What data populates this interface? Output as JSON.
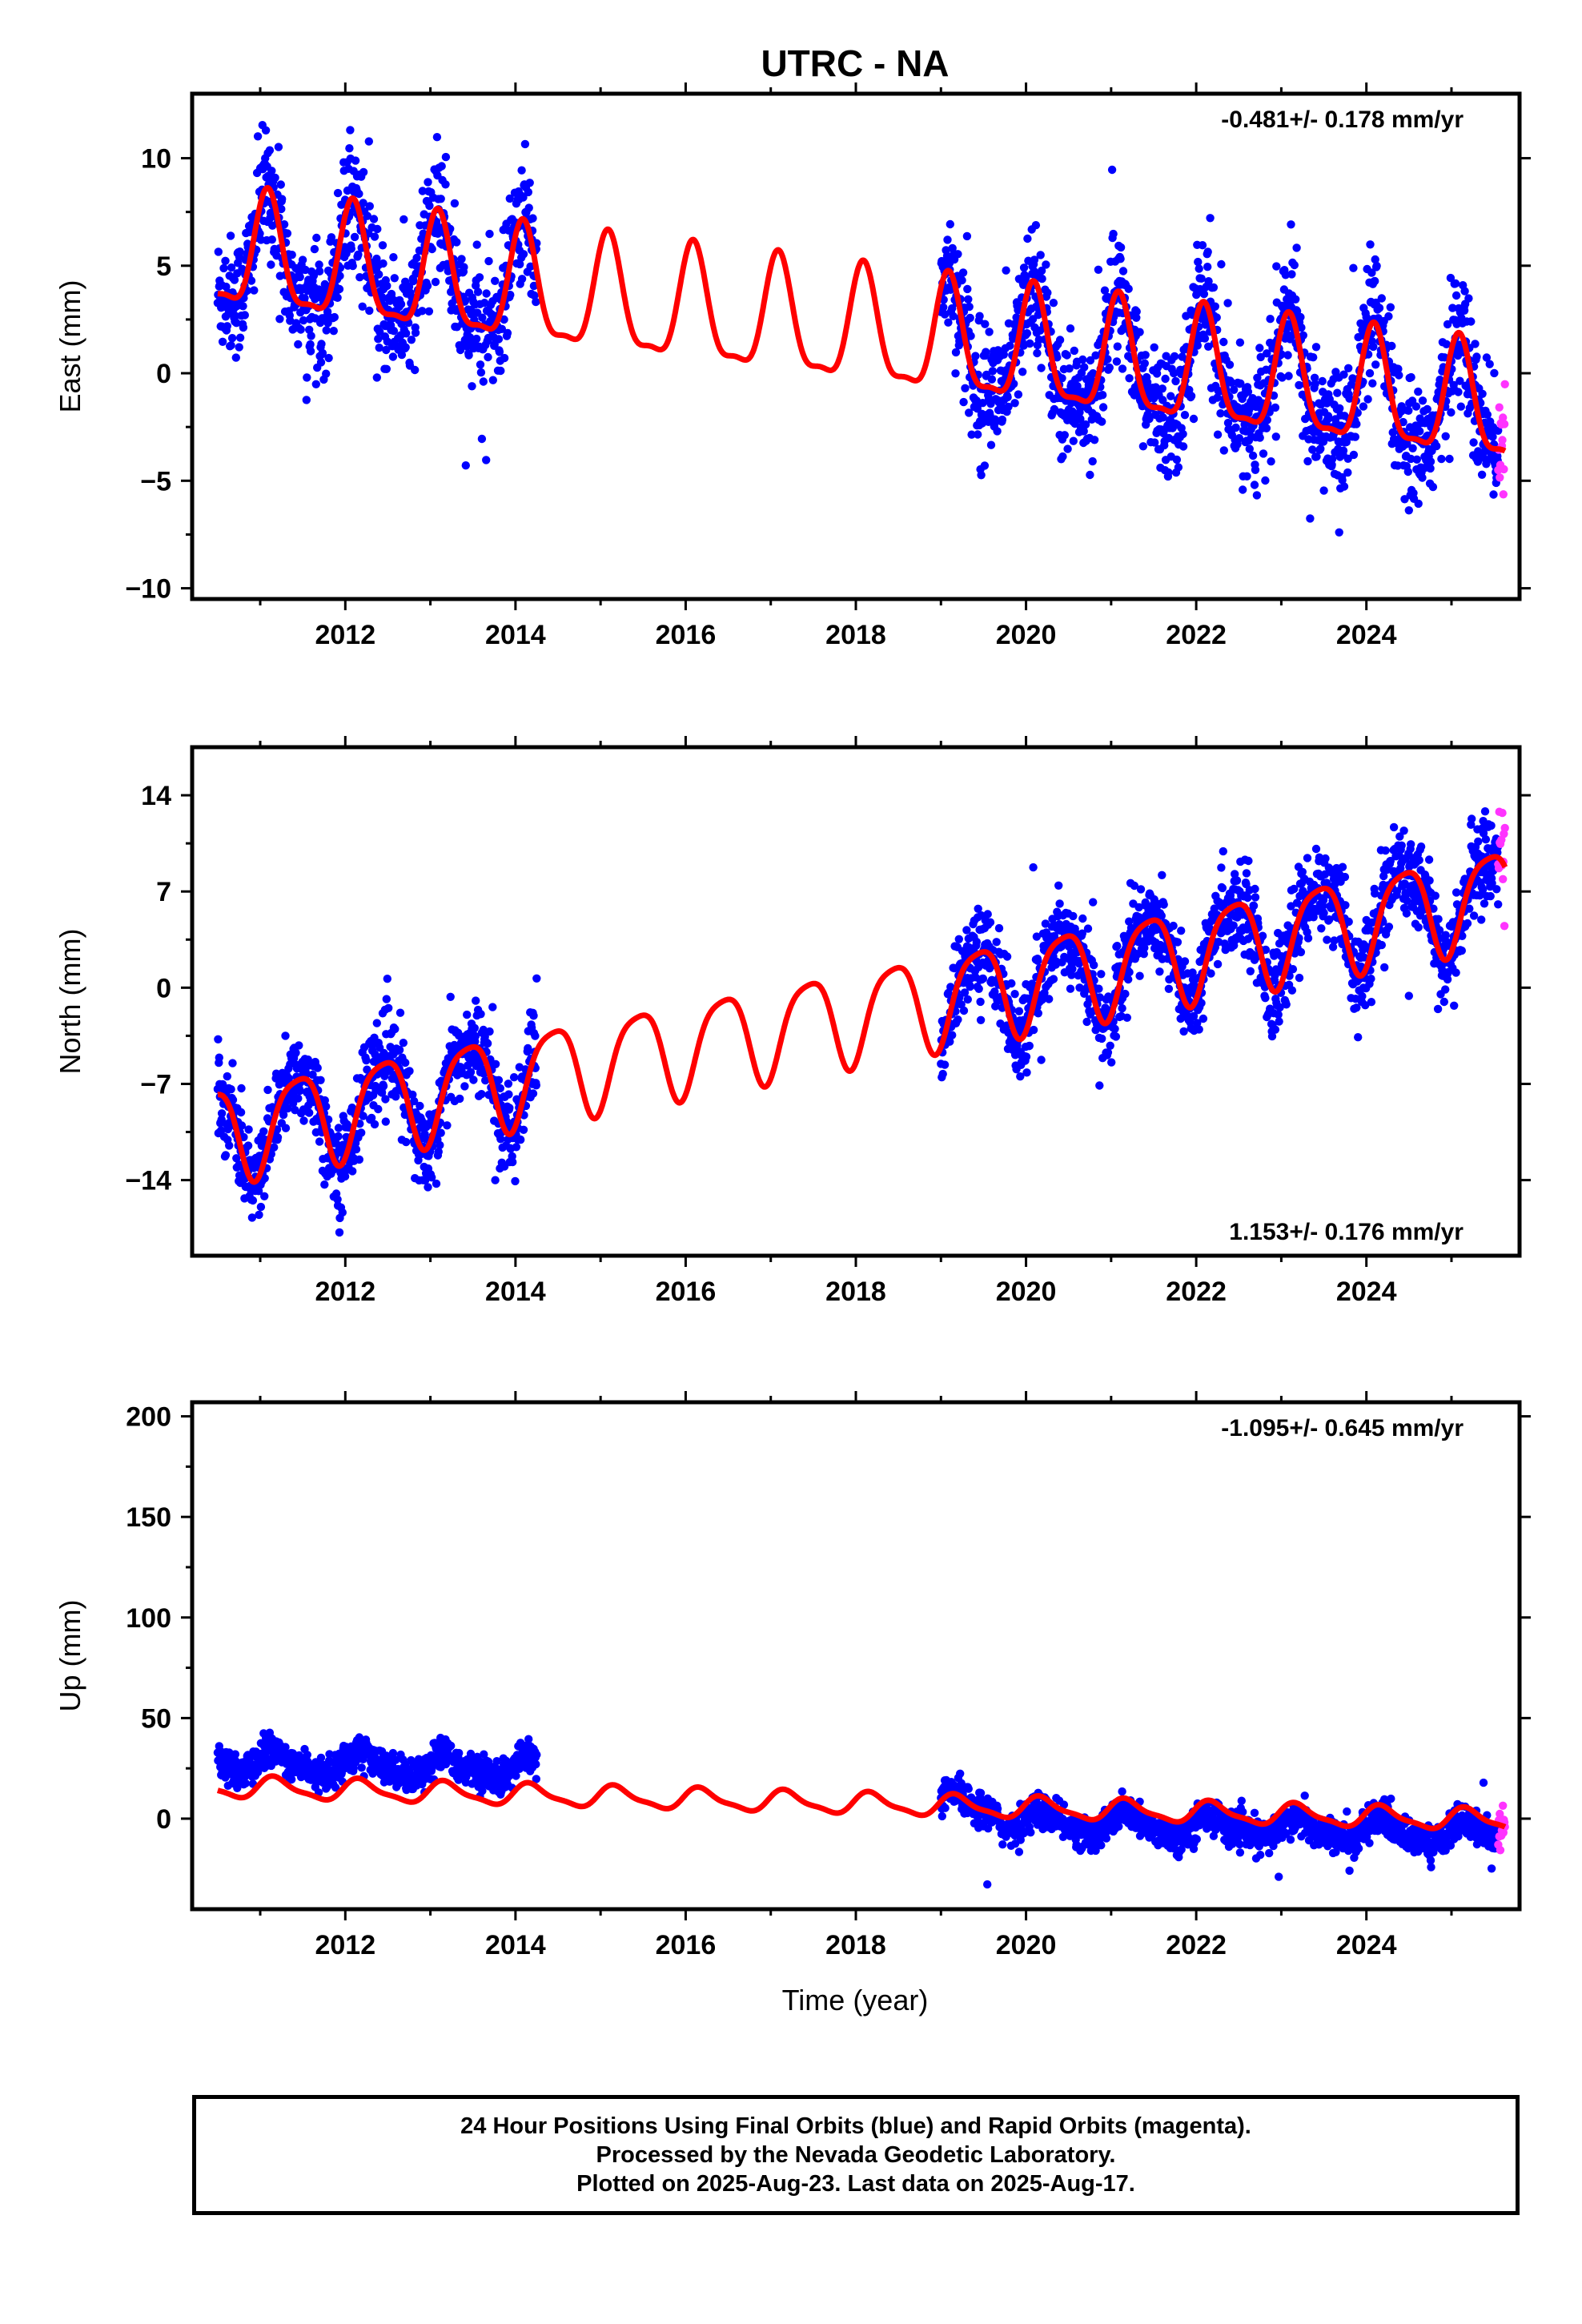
{
  "title": "UTRC - NA",
  "xlabel": "Time (year)",
  "footer": {
    "lines": [
      "24 Hour Positions Using Final Orbits (blue) and Rapid Orbits (magenta).",
      "Processed by the Nevada Geodetic Laboratory.",
      "Plotted on 2025-Aug-23. Last data on 2025-Aug-17."
    ]
  },
  "colors": {
    "final": "#0000ff",
    "rapid": "#ff33ff",
    "model": "#ff0000",
    "frame": "#000000"
  },
  "chart_data": [
    {
      "type": "scatter",
      "component": "east",
      "ylabel": "East (mm)",
      "rate_label": "-0.481+/- 0.178 mm/yr",
      "rate_position": "top-right",
      "xlim": [
        2010.2,
        2025.8
      ],
      "ylim": [
        -10.5,
        13.0
      ],
      "xticks": [
        2012,
        2014,
        2016,
        2018,
        2020,
        2022,
        2024
      ],
      "yticks": [
        -10,
        -5,
        0,
        5,
        10
      ],
      "rate_mm_per_yr": -0.481,
      "offset_mm": 1.9,
      "annual_amp_mm": 2.6,
      "semiannual_amp_mm": 0.8,
      "annual_phase": 1.0,
      "noise_mm": 1.4,
      "data_gap": [
        2014.25,
        2019.0
      ],
      "data_start": 2010.5,
      "data_end": 2025.63,
      "rapid_start": 2025.55
    },
    {
      "type": "scatter",
      "component": "north",
      "ylabel": "North (mm)",
      "rate_label": "1.153+/- 0.176 mm/yr",
      "rate_position": "bottom-right",
      "xlim": [
        2010.2,
        2025.8
      ],
      "ylim": [
        -19.5,
        17.5
      ],
      "xticks": [
        2012,
        2014,
        2016,
        2018,
        2020,
        2022,
        2024
      ],
      "yticks": [
        -14,
        -7,
        0,
        7,
        14
      ],
      "rate_mm_per_yr": 1.153,
      "offset_mm": -1.9,
      "annual_amp_mm": 3.4,
      "semiannual_amp_mm": 0.7,
      "annual_phase": -1.2,
      "noise_mm": 1.6,
      "data_gap": [
        2014.25,
        2019.0
      ],
      "data_start": 2010.5,
      "data_end": 2025.63,
      "rapid_start": 2025.55
    },
    {
      "type": "scatter",
      "component": "up",
      "ylabel": "Up (mm)",
      "rate_label": "-1.095+/- 0.645 mm/yr",
      "rate_position": "top-right",
      "xlim": [
        2010.2,
        2025.8
      ],
      "ylim": [
        -45,
        207
      ],
      "xticks": [
        2012,
        2014,
        2016,
        2018,
        2020,
        2022,
        2024
      ],
      "yticks": [
        0,
        50,
        100,
        150,
        200
      ],
      "rate_mm_per_yr": -1.095,
      "offset_mm": 7.5,
      "annual_amp_mm": 5.0,
      "semiannual_amp_mm": 1.5,
      "annual_phase": 0.4,
      "noise_mm": 4.0,
      "pre_gap_bias_mm": 13.0,
      "post_2019_5_bias_mm": -7.0,
      "data_gap": [
        2014.25,
        2019.0
      ],
      "data_start": 2010.5,
      "data_end": 2025.63,
      "rapid_start": 2025.55
    }
  ]
}
